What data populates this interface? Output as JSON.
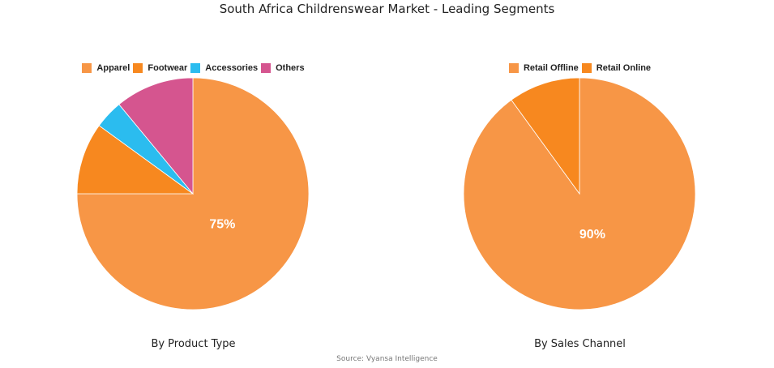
{
  "title": "South Africa Childrenswear Market - Leading Segments",
  "source": "Source: Vyansa Intelligence",
  "chart_data": [
    {
      "type": "pie",
      "title": "By Product Type",
      "legend_position": "top",
      "slices": [
        {
          "label": "Apparel",
          "value": 75,
          "color": "#F79646"
        },
        {
          "label": "Footwear",
          "value": 10,
          "color": "#F7881F"
        },
        {
          "label": "Accessories",
          "value": 4,
          "color": "#2BBCEF"
        },
        {
          "label": "Others",
          "value": 11,
          "color": "#D5558F"
        }
      ],
      "data_labels": [
        "75%"
      ]
    },
    {
      "type": "pie",
      "title": "By Sales Channel",
      "legend_position": "top",
      "slices": [
        {
          "label": "Retail Offline",
          "value": 90,
          "color": "#F79646"
        },
        {
          "label": "Retail Online",
          "value": 10,
          "color": "#F7881F"
        }
      ],
      "data_labels": [
        "90%"
      ]
    }
  ]
}
